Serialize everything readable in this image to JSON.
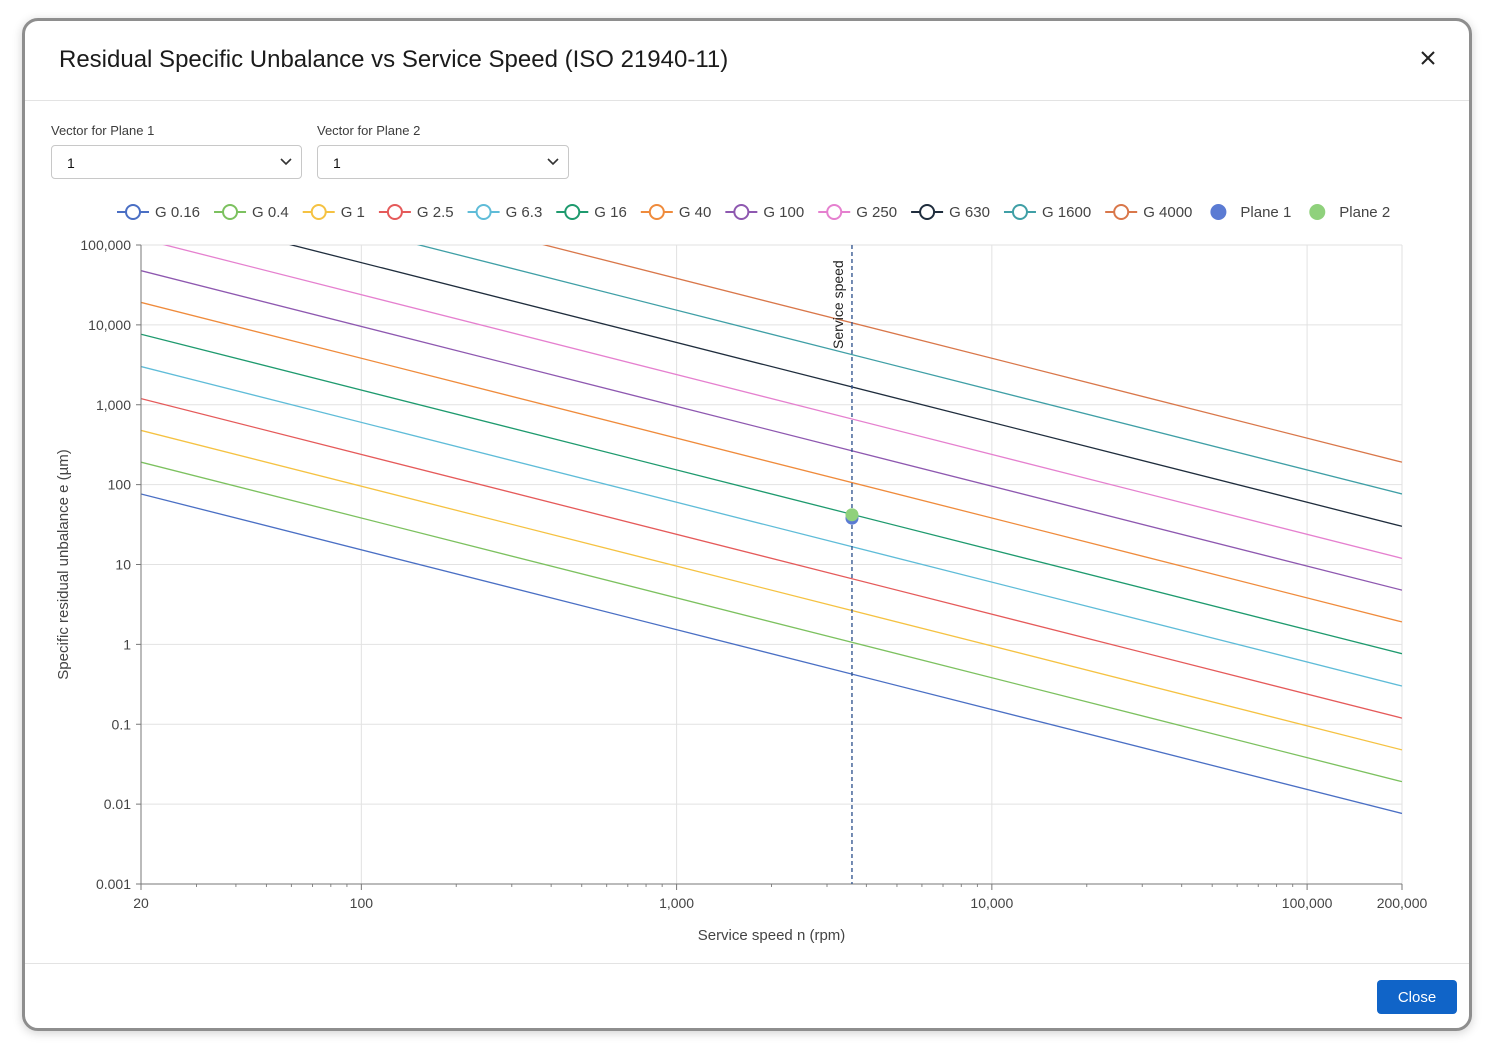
{
  "dialog": {
    "title": "Residual Specific Unbalance vs Service Speed (ISO 21940-11)",
    "close_label": "Close"
  },
  "controls": {
    "plane1": {
      "label": "Vector for Plane 1",
      "value": "1"
    },
    "plane2": {
      "label": "Vector for Plane 2",
      "value": "1"
    }
  },
  "chart_data": {
    "type": "line",
    "title": "",
    "xlabel": "Service speed n (rpm)",
    "ylabel": "Specific residual unbalance e (µm)",
    "x_scale": "log",
    "y_scale": "log",
    "xlim": [
      20,
      200000
    ],
    "ylim": [
      0.001,
      100000
    ],
    "grid": true,
    "legend_position": "top",
    "x_ticks": [
      {
        "value": 20,
        "label": "20"
      },
      {
        "value": 100,
        "label": "100"
      },
      {
        "value": 1000,
        "label": "1,000"
      },
      {
        "value": 10000,
        "label": "10,000"
      },
      {
        "value": 100000,
        "label": "100,000"
      },
      {
        "value": 200000,
        "label": "200,000"
      }
    ],
    "y_ticks": [
      {
        "value": 100000,
        "label": "100,000"
      },
      {
        "value": 10000,
        "label": "10,000"
      },
      {
        "value": 1000,
        "label": "1,000"
      },
      {
        "value": 100,
        "label": "100"
      },
      {
        "value": 10,
        "label": "10"
      },
      {
        "value": 1,
        "label": "1"
      },
      {
        "value": 0.1,
        "label": "0.1"
      },
      {
        "value": 0.01,
        "label": "0.01"
      },
      {
        "value": 0.001,
        "label": "0.001"
      }
    ],
    "series": [
      {
        "name": "G 0.16",
        "grade": 0.16,
        "color": "#4a6fc4"
      },
      {
        "name": "G 0.4",
        "grade": 0.4,
        "color": "#7cc15f"
      },
      {
        "name": "G 1",
        "grade": 1,
        "color": "#f5c242"
      },
      {
        "name": "G 2.5",
        "grade": 2.5,
        "color": "#e55a5a"
      },
      {
        "name": "G 6.3",
        "grade": 6.3,
        "color": "#5fbcd8"
      },
      {
        "name": "G 16",
        "grade": 16,
        "color": "#1e9a6e"
      },
      {
        "name": "G 40",
        "grade": 40,
        "color": "#ef8b3c"
      },
      {
        "name": "G 100",
        "grade": 100,
        "color": "#8e58b0"
      },
      {
        "name": "G 250",
        "grade": 250,
        "color": "#e580cf"
      },
      {
        "name": "G 630",
        "grade": 630,
        "color": "#1f2d3d"
      },
      {
        "name": "G 1600",
        "grade": 1600,
        "color": "#3f9fa6"
      },
      {
        "name": "G 4000",
        "grade": 4000,
        "color": "#d9774a"
      }
    ],
    "points": [
      {
        "name": "Plane 1",
        "x": 3600,
        "y": 38,
        "color": "#5b7bd3"
      },
      {
        "name": "Plane 2",
        "x": 3600,
        "y": 42,
        "color": "#8fd17c"
      }
    ],
    "service_speed": {
      "label": "Service speed",
      "x": 3600,
      "color": "#2a4e8a"
    }
  }
}
